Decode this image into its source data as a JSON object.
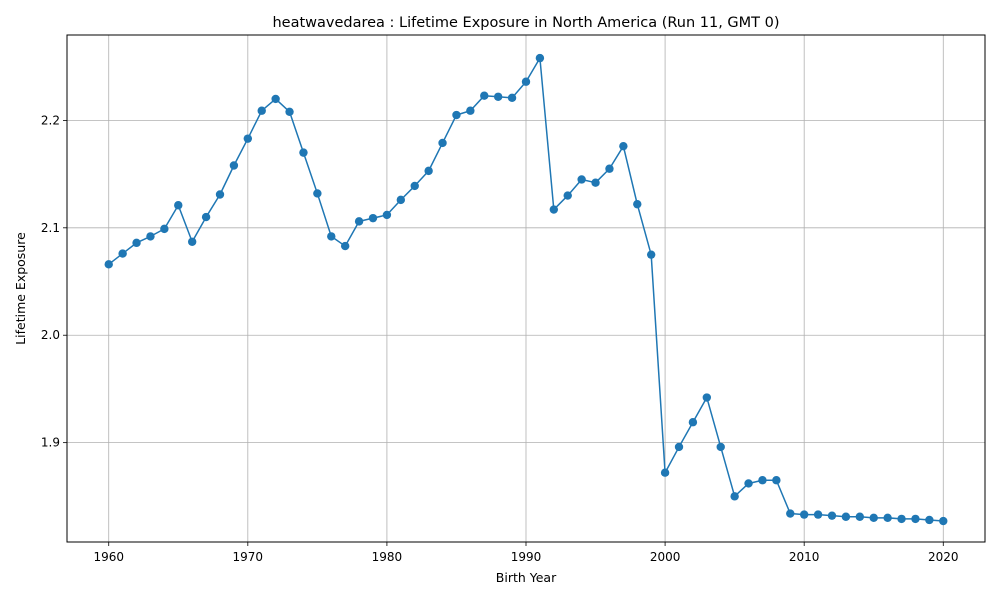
{
  "chart_data": {
    "type": "line",
    "title": "heatwavedarea : Lifetime Exposure in North America (Run 11, GMT 0)",
    "xlabel": "Birth Year",
    "ylabel": "Lifetime Exposure",
    "xlim": [
      1957,
      2023
    ],
    "ylim": [
      1.8075,
      2.2795
    ],
    "xticks": [
      1960,
      1970,
      1980,
      1990,
      2000,
      2010,
      2020
    ],
    "yticks": [
      1.9,
      2.0,
      2.1,
      2.2
    ],
    "ytick_labels": [
      "1.9",
      "2.0",
      "2.1",
      "2.2"
    ],
    "grid": true,
    "legend": "none",
    "colors": {
      "line": "#1f77b4",
      "grid": "#b0b0b0",
      "axes": "#000000"
    },
    "series": [
      {
        "x": [
          1960,
          1961,
          1962,
          1963,
          1964,
          1965,
          1966,
          1967,
          1968,
          1969,
          1970,
          1971,
          1972,
          1973,
          1974,
          1975,
          1976,
          1977,
          1978,
          1979,
          1980,
          1981,
          1982,
          1983,
          1984,
          1985,
          1986,
          1987,
          1988,
          1989,
          1990,
          1991,
          1992,
          1993,
          1994,
          1995,
          1996,
          1997,
          1998,
          1999,
          2000,
          2001,
          2002,
          2003,
          2004,
          2005,
          2006,
          2007,
          2008,
          2009,
          2010,
          2011,
          2012,
          2013,
          2014,
          2015,
          2016,
          2017,
          2018,
          2019,
          2020
        ],
        "values": [
          2.066,
          2.076,
          2.086,
          2.092,
          2.099,
          2.121,
          2.087,
          2.11,
          2.131,
          2.158,
          2.183,
          2.209,
          2.22,
          2.208,
          2.17,
          2.132,
          2.092,
          2.083,
          2.106,
          2.109,
          2.112,
          2.126,
          2.139,
          2.153,
          2.179,
          2.205,
          2.209,
          2.223,
          2.222,
          2.221,
          2.236,
          2.258,
          2.117,
          2.13,
          2.145,
          2.142,
          2.155,
          2.176,
          2.122,
          2.075,
          1.872,
          1.896,
          1.919,
          1.942,
          1.896,
          1.85,
          1.862,
          1.865,
          1.865,
          1.834,
          1.833,
          1.833,
          1.832,
          1.831,
          1.831,
          1.83,
          1.83,
          1.829,
          1.829,
          1.828,
          1.827
        ]
      }
    ]
  }
}
